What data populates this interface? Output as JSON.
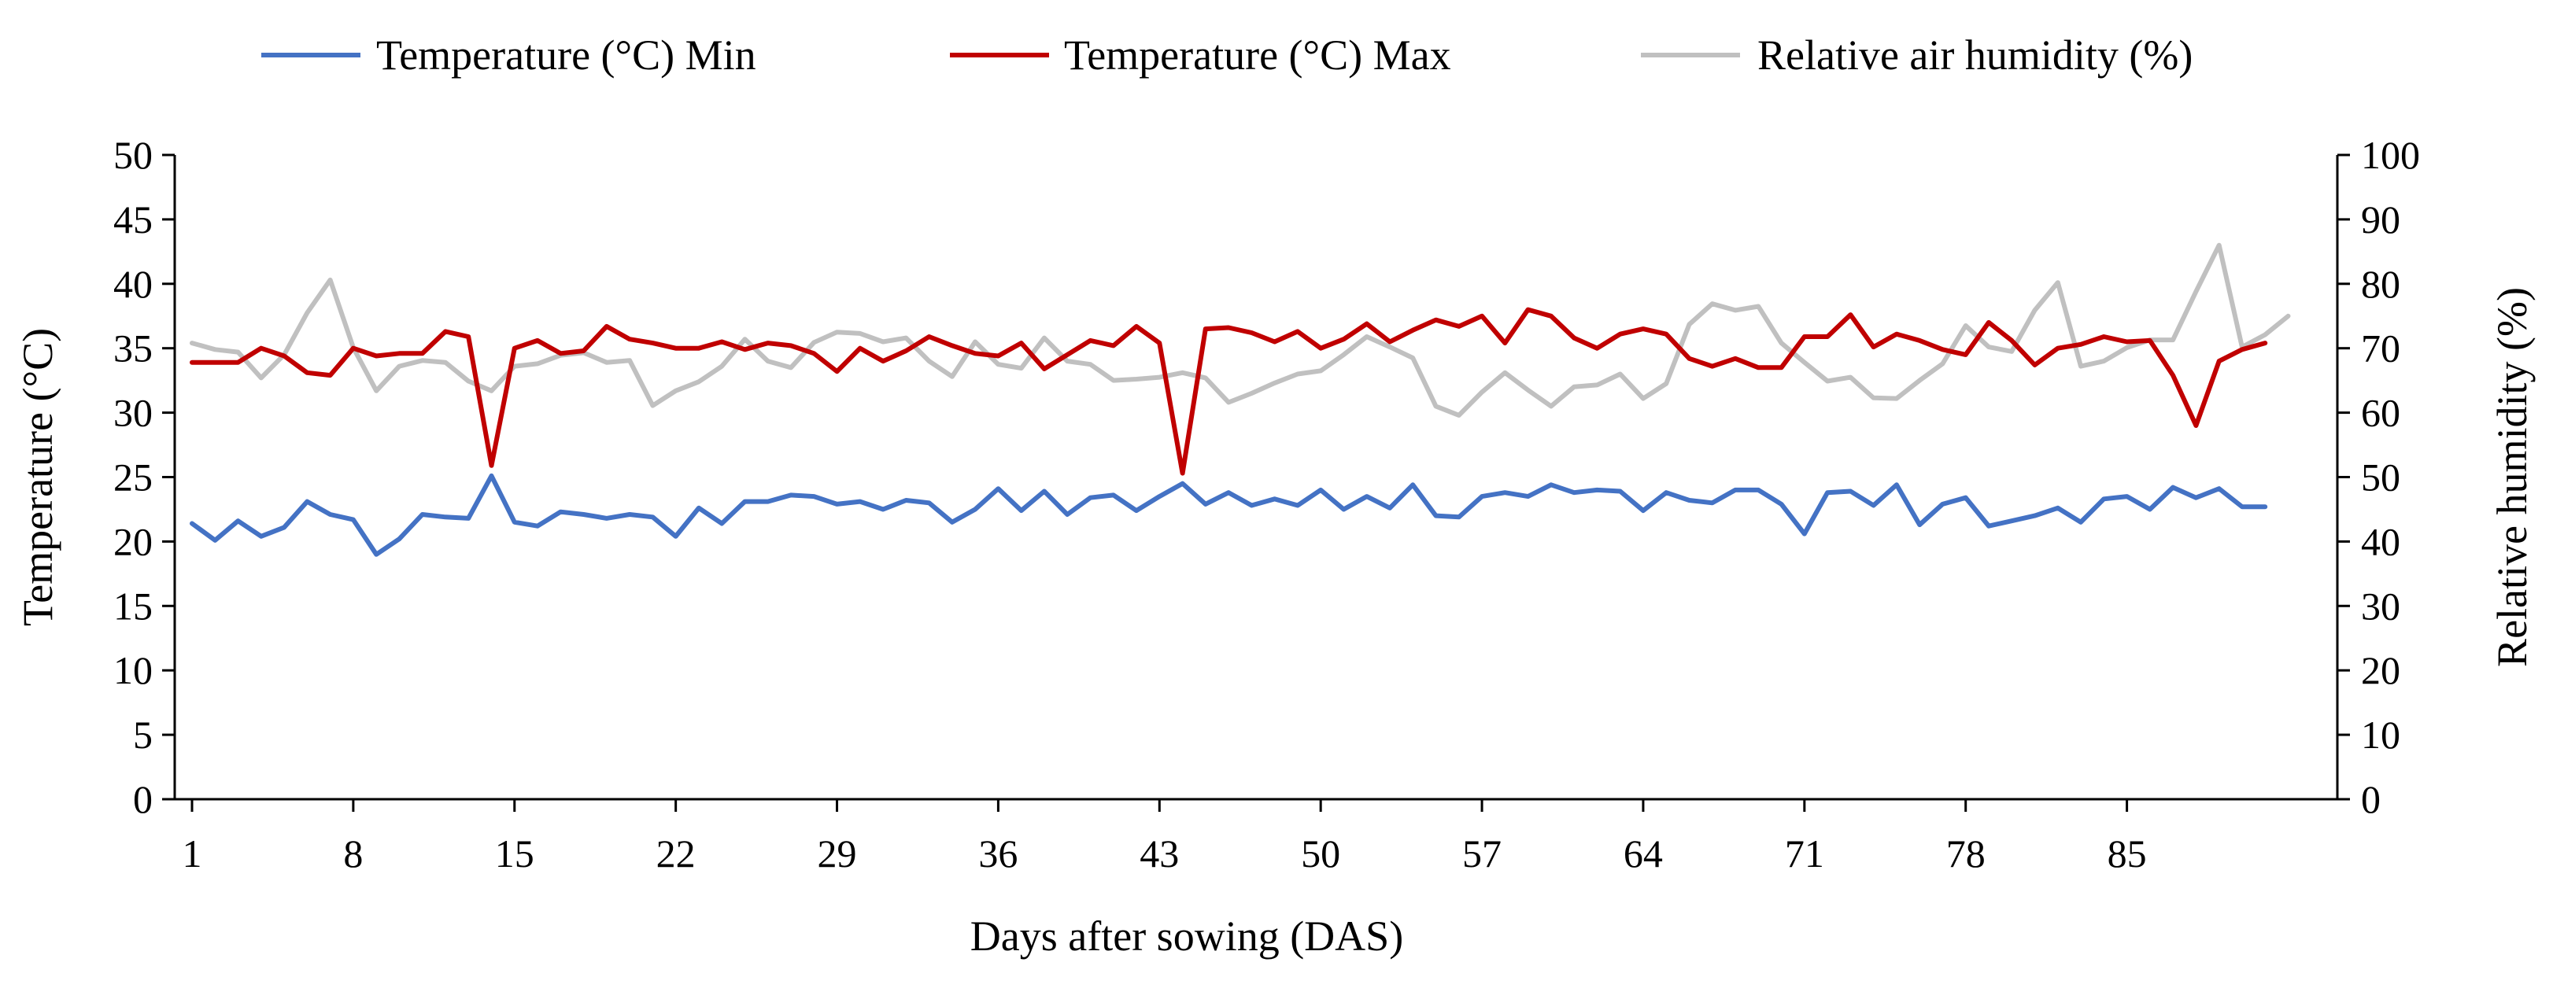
{
  "chart_data": {
    "type": "line",
    "title": "",
    "xlabel": "Days after sowing (DAS)",
    "ylabel": "Temperature (°C)",
    "y2label": "Relative humidity (%)",
    "ylim": [
      0,
      50
    ],
    "y2lim": [
      0,
      100
    ],
    "yticks": [
      0,
      5,
      10,
      15,
      20,
      25,
      30,
      35,
      40,
      45,
      50
    ],
    "y2ticks": [
      0,
      10,
      20,
      30,
      40,
      50,
      60,
      70,
      80,
      90,
      100
    ],
    "xticks": [
      1,
      8,
      15,
      22,
      29,
      36,
      43,
      50,
      57,
      64,
      71,
      78,
      85
    ],
    "xtick_labels": [
      "1",
      "8",
      "15",
      "22",
      "29",
      "36",
      "43",
      "50",
      "57",
      "64",
      "71",
      "78",
      "85"
    ],
    "x_range": [
      1,
      94
    ],
    "legend_position": "top",
    "grid": false,
    "series": [
      {
        "name": "Temperature (°C) Min",
        "axis": "left",
        "color": "#4472C4",
        "x_start": 1,
        "values": [
          21.4,
          20.1,
          21.6,
          20.4,
          21.1,
          23.1,
          22.1,
          21.7,
          19.0,
          20.2,
          22.1,
          21.9,
          21.8,
          25.1,
          21.5,
          21.2,
          22.3,
          22.1,
          21.8,
          22.1,
          21.9,
          20.4,
          22.6,
          21.4,
          23.1,
          23.1,
          23.6,
          23.5,
          22.9,
          23.1,
          22.5,
          23.2,
          23.0,
          21.5,
          22.5,
          24.1,
          22.4,
          23.9,
          22.1,
          23.4,
          23.6,
          22.4,
          23.5,
          24.5,
          22.9,
          23.8,
          22.8,
          23.3,
          22.8,
          24.0,
          22.5,
          23.5,
          22.6,
          24.4,
          22.0,
          21.9,
          23.5,
          23.8,
          23.5,
          24.4,
          23.8,
          24.0,
          23.9,
          22.4,
          23.8,
          23.2,
          23.0,
          24.0,
          24.0,
          22.9,
          20.6,
          23.8,
          23.9,
          22.8,
          24.4,
          21.3,
          22.9,
          23.4,
          21.2,
          21.6,
          22.0,
          22.6,
          21.5,
          23.3,
          23.5,
          22.5,
          24.2,
          23.4,
          24.1,
          22.7,
          22.7
        ]
      },
      {
        "name": "Temperature (°C) Max",
        "axis": "left",
        "color": "#C00000",
        "x_start": 1,
        "values": [
          33.9,
          33.9,
          33.9,
          35.0,
          34.4,
          33.1,
          32.9,
          35.0,
          34.4,
          34.6,
          34.6,
          36.3,
          35.9,
          25.9,
          35.0,
          35.6,
          34.6,
          34.8,
          36.7,
          35.7,
          35.4,
          35.0,
          35.0,
          35.5,
          34.9,
          35.4,
          35.2,
          34.6,
          33.2,
          35.0,
          34.0,
          34.8,
          35.9,
          35.2,
          34.6,
          34.4,
          35.4,
          33.4,
          34.5,
          35.6,
          35.2,
          36.7,
          35.4,
          25.3,
          36.5,
          36.6,
          36.2,
          35.5,
          36.3,
          35.0,
          35.7,
          36.9,
          35.5,
          36.4,
          37.2,
          36.7,
          37.5,
          35.4,
          38.0,
          37.5,
          35.8,
          35.0,
          36.1,
          36.5,
          36.1,
          34.2,
          33.6,
          34.2,
          33.5,
          33.5,
          35.9,
          35.9,
          37.6,
          35.1,
          36.1,
          35.6,
          34.9,
          34.5,
          37.0,
          35.6,
          33.7,
          35.0,
          35.3,
          35.9,
          35.5,
          35.6,
          32.9,
          29.0,
          34.0,
          34.9,
          35.4
        ]
      },
      {
        "name": "Relative air humidity (%)",
        "axis": "right",
        "color": "#C0C0C0",
        "x_start": 1,
        "values": [
          70.8,
          69.8,
          69.4,
          65.4,
          69.0,
          75.5,
          80.6,
          70.1,
          63.4,
          67.2,
          68.1,
          67.8,
          64.9,
          63.4,
          67.2,
          67.6,
          68.9,
          69.3,
          67.8,
          68.1,
          61.1,
          63.4,
          64.8,
          67.2,
          71.4,
          68.0,
          67.0,
          70.9,
          72.5,
          72.3,
          71.0,
          71.6,
          68.0,
          65.6,
          71.0,
          67.5,
          66.9,
          71.6,
          68.0,
          67.5,
          65.0,
          65.2,
          65.5,
          66.2,
          65.4,
          61.6,
          63.0,
          64.6,
          66.0,
          66.5,
          69.0,
          71.8,
          70.2,
          68.5,
          61.0,
          59.6,
          63.2,
          66.2,
          63.5,
          61.0,
          64.0,
          64.3,
          66.0,
          62.2,
          64.5,
          73.7,
          76.9,
          75.9,
          76.5,
          70.8,
          67.8,
          64.9,
          65.5,
          62.3,
          62.2,
          65.0,
          67.6,
          73.5,
          70.2,
          69.5,
          75.9,
          80.2,
          67.2,
          68.0,
          70.1,
          71.3,
          71.3,
          78.8,
          86.0,
          70.2,
          72.1,
          75.0
        ]
      }
    ]
  }
}
